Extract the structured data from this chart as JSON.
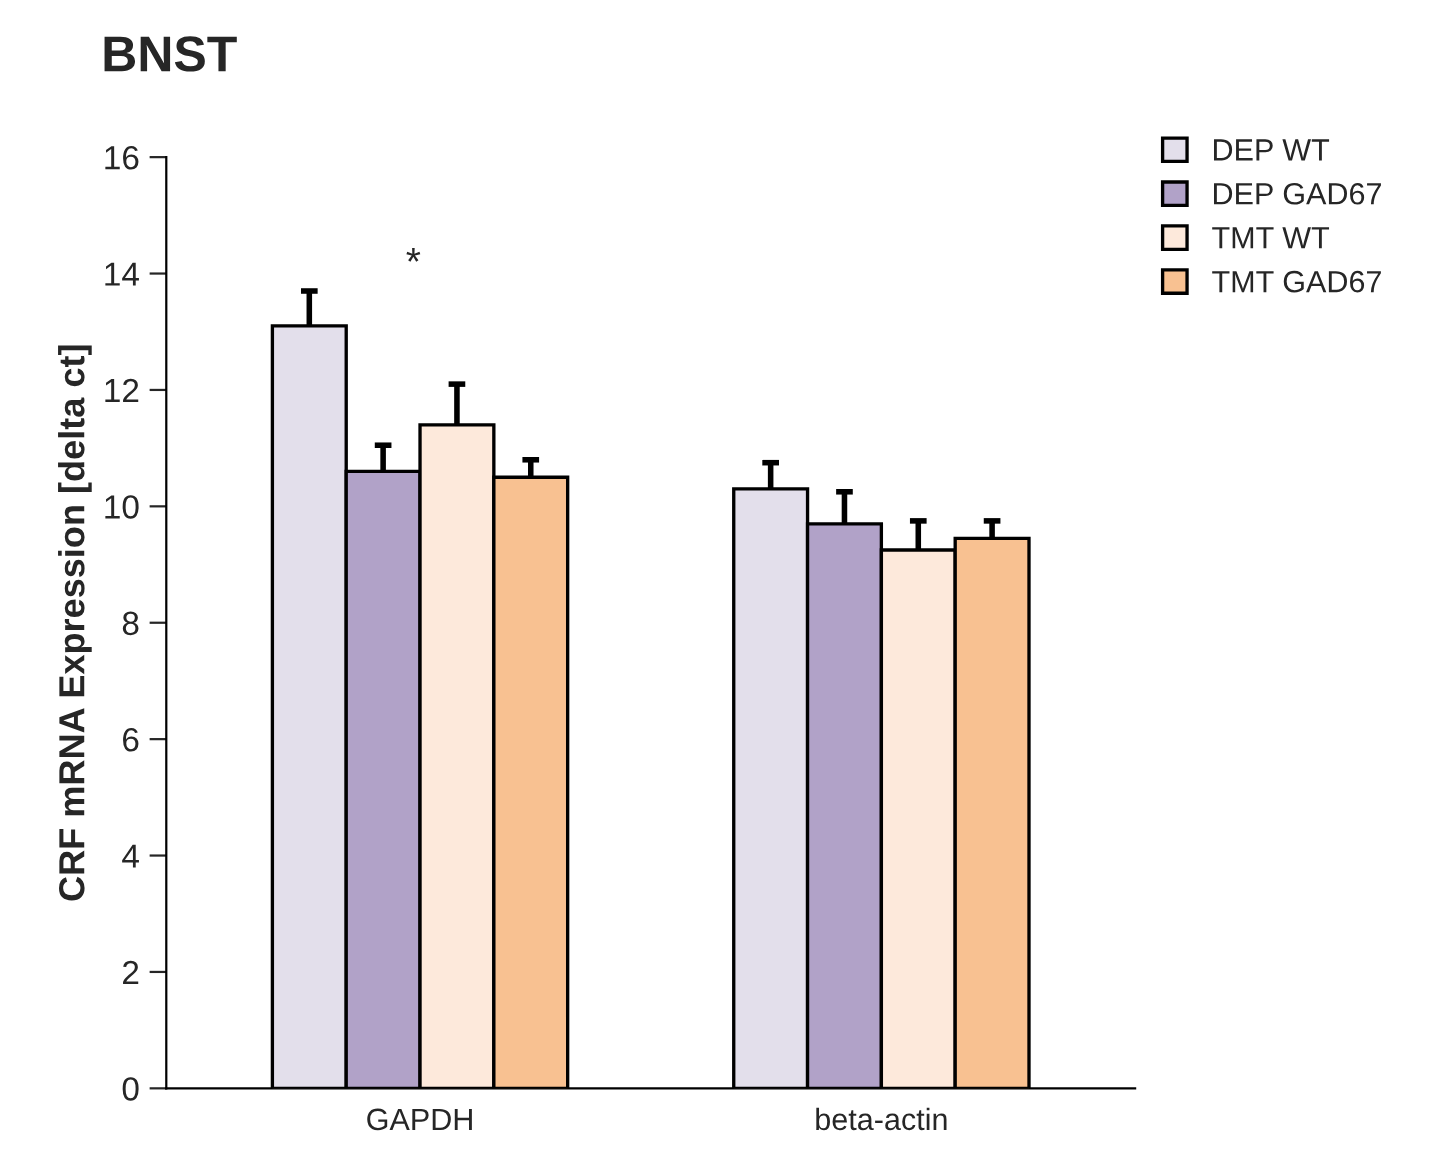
{
  "chart_data": {
    "type": "bar",
    "title": "BNST",
    "ylabel": "CRF mRNA Expression [delta ct]",
    "categories": [
      "GAPDH",
      "beta-actin"
    ],
    "series": [
      {
        "name": "DEP WT",
        "color": "#e3dfeb",
        "values": [
          13.1,
          10.3
        ],
        "errors": [
          0.6,
          0.45
        ]
      },
      {
        "name": "DEP GAD67",
        "color": "#b1a2c8",
        "values": [
          10.6,
          9.7
        ],
        "errors": [
          0.45,
          0.55
        ]
      },
      {
        "name": "TMT WT",
        "color": "#fde9db",
        "values": [
          11.4,
          9.25
        ],
        "errors": [
          0.7,
          0.5
        ]
      },
      {
        "name": "TMT GAD67",
        "color": "#f8c191",
        "values": [
          10.5,
          9.45
        ],
        "errors": [
          0.3,
          0.3
        ]
      }
    ],
    "annotations": [
      "*"
    ],
    "ylim": [
      0,
      16
    ],
    "yticks": [
      0,
      2,
      4,
      6,
      8,
      10,
      12,
      14,
      16
    ],
    "grid": false,
    "legend": "top right"
  }
}
